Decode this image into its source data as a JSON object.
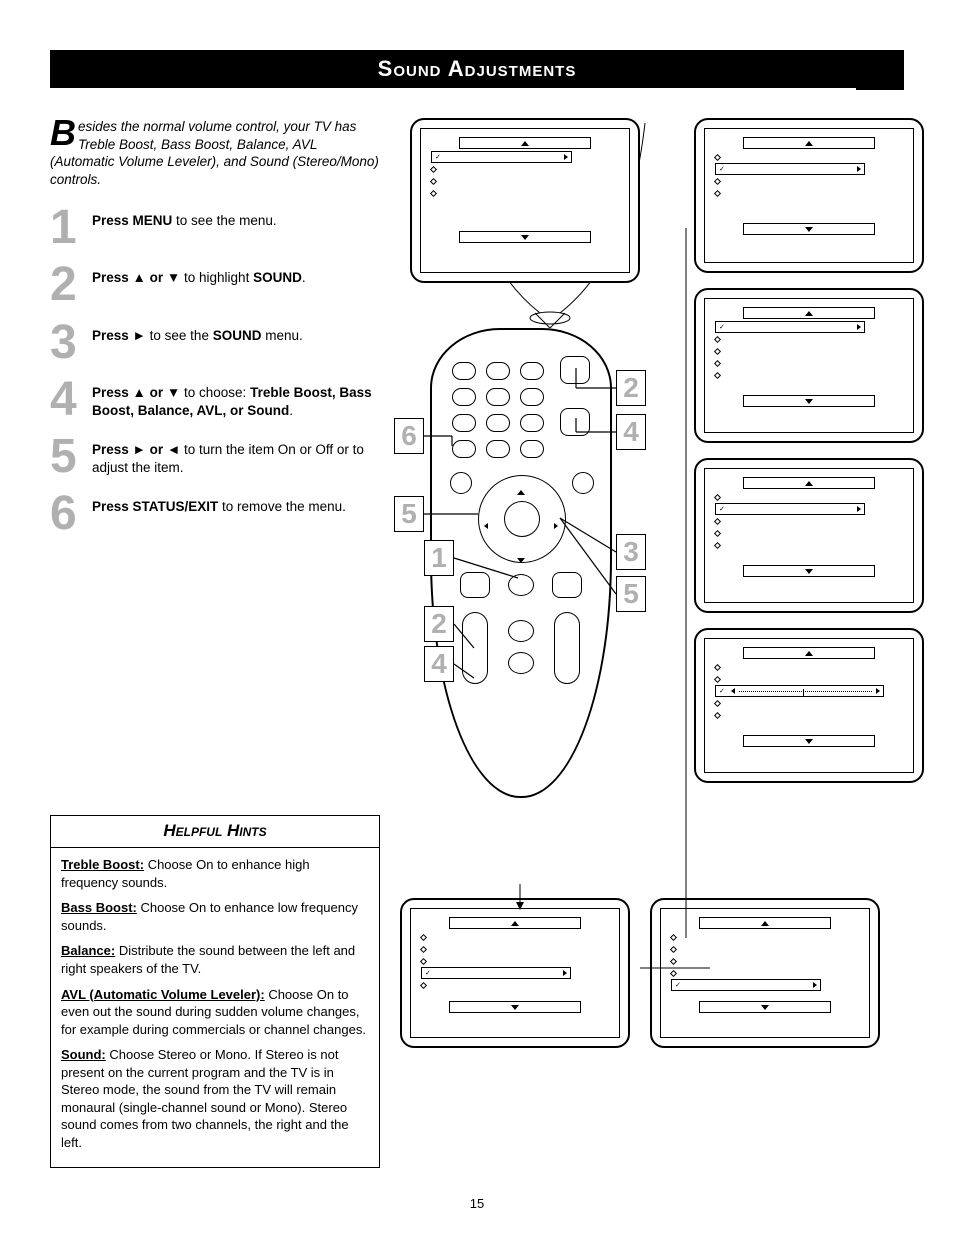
{
  "page_number": "15",
  "title": "Sound Adjustments",
  "intro": {
    "dropcap": "B",
    "text": "esides the normal volume control, your TV has Treble Boost,  Bass Boost, Balance, AVL (Automatic Volume Leveler), and Sound (Stereo/Mono) controls."
  },
  "steps": [
    {
      "num": "1",
      "html": "<b>Press MENU</b> to see the menu."
    },
    {
      "num": "2",
      "html": "<b>Press ▲ or ▼</b> to highlight <b>SOUND</b>."
    },
    {
      "num": "3",
      "html": "<b>Press ►</b> to see the <b>SOUND</b> menu."
    },
    {
      "num": "4",
      "html": "<b>Press ▲ or ▼</b> to choose: <b>Treble Boost, Bass Boost, Balance, AVL, or Sound</b>."
    },
    {
      "num": "5",
      "html": "<b>Press ► or ◄</b> to turn the item On or Off or to adjust the item."
    },
    {
      "num": "6",
      "html": "<b>Press STATUS/EXIT</b> to remove the menu."
    }
  ],
  "hints": {
    "title": "Helpful Hints",
    "items": [
      {
        "label": "Treble Boost:",
        "text": " Choose On to enhance high frequency sounds."
      },
      {
        "label": "Bass Boost:",
        "text": " Choose On to enhance low frequency sounds."
      },
      {
        "label": "Balance:",
        "text": " Distribute the sound between the left and right speakers of the TV."
      },
      {
        "label": "AVL (Automatic Volume Leveler):",
        "text": " Choose On to even out the sound during sudden volume changes, for example during commercials or channel changes."
      },
      {
        "label": "Sound:",
        "text": " Choose Stereo or Mono. If Stereo is not present on the current program and the TV is in Stereo mode, the sound from the TV will remain monaural (single-channel sound or Mono). Stereo sound comes from two channels, the right and the left."
      }
    ]
  },
  "remote_callouts": [
    "1",
    "2",
    "3",
    "4",
    "5",
    "6",
    "2",
    "4",
    "5"
  ],
  "colors": {
    "step_num": "#b0b0b0",
    "text": "#000000",
    "bg": "#ffffff"
  }
}
